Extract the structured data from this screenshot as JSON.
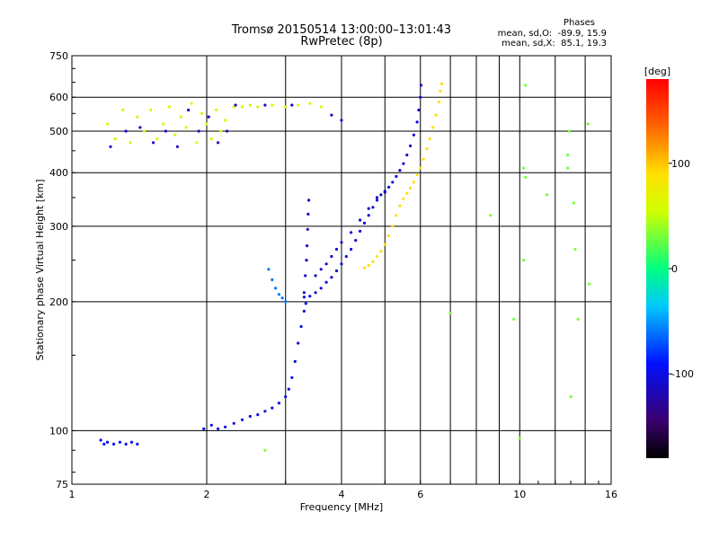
{
  "chart_data": {
    "type": "scatter",
    "title": "Tromsø 20150514 13:00:00–13:01:43",
    "subtitle": "RwPretec (8p)",
    "phase_stats": {
      "header": "Phases",
      "o_line": "mean, sd,O:  -89.9, 15.9",
      "x_line": "mean, sd,X:  85.1, 19.3"
    },
    "xlabel": "Frequency [MHz]",
    "ylabel": "Stationary phase Virtual Height [km]",
    "x_scale": "log",
    "y_scale": "log",
    "xlim": [
      1,
      16
    ],
    "ylim": [
      75,
      750
    ],
    "x_ticks": [
      1,
      2,
      4,
      6,
      10,
      16
    ],
    "x_grid": [
      2,
      3,
      4,
      5,
      6,
      7,
      8,
      9,
      10,
      12,
      14
    ],
    "y_ticks": [
      75,
      100,
      200,
      300,
      400,
      500,
      600,
      750
    ],
    "grid": true,
    "colorbar": {
      "label": "[deg]",
      "range": [
        -180,
        180
      ],
      "ticks": [
        100,
        0,
        -100
      ]
    },
    "series": [
      {
        "trace": "o-low",
        "phase": -95,
        "points": [
          [
            1.16,
            95
          ],
          [
            1.18,
            93
          ],
          [
            1.2,
            94
          ],
          [
            1.24,
            93
          ],
          [
            1.28,
            94
          ],
          [
            1.32,
            93
          ],
          [
            1.36,
            94
          ],
          [
            1.4,
            93
          ]
        ]
      },
      {
        "trace": "o-e",
        "phase": -100,
        "points": [
          [
            1.97,
            101
          ],
          [
            2.05,
            103
          ],
          [
            2.12,
            101
          ],
          [
            2.2,
            102
          ],
          [
            2.3,
            104
          ],
          [
            2.4,
            106
          ],
          [
            2.5,
            108
          ],
          [
            2.6,
            109
          ],
          [
            2.7,
            111
          ],
          [
            2.8,
            113
          ],
          [
            2.9,
            116
          ],
          [
            3.0,
            120
          ],
          [
            3.05,
            125
          ],
          [
            3.1,
            133
          ],
          [
            3.15,
            145
          ],
          [
            3.2,
            160
          ],
          [
            3.25,
            175
          ],
          [
            3.3,
            190
          ],
          [
            3.33,
            198
          ]
        ]
      },
      {
        "trace": "o-f-spike",
        "phase": -110,
        "points": [
          [
            3.3,
            210
          ],
          [
            3.32,
            230
          ],
          [
            3.34,
            250
          ],
          [
            3.35,
            270
          ],
          [
            3.36,
            295
          ],
          [
            3.37,
            320
          ],
          [
            3.38,
            345
          ]
        ]
      },
      {
        "trace": "o-f",
        "phase": -105,
        "points": [
          [
            3.3,
            205
          ],
          [
            3.4,
            206
          ],
          [
            3.5,
            210
          ],
          [
            3.6,
            215
          ],
          [
            3.7,
            222
          ],
          [
            3.8,
            228
          ],
          [
            3.9,
            236
          ],
          [
            4.0,
            245
          ],
          [
            4.1,
            255
          ],
          [
            4.2,
            265
          ],
          [
            4.3,
            278
          ],
          [
            4.4,
            292
          ],
          [
            4.5,
            305
          ],
          [
            4.6,
            318
          ],
          [
            4.7,
            332
          ],
          [
            4.8,
            345
          ],
          [
            4.9,
            355
          ],
          [
            5.0,
            362
          ],
          [
            5.1,
            370
          ],
          [
            5.2,
            380
          ],
          [
            5.3,
            392
          ],
          [
            5.4,
            405
          ],
          [
            5.5,
            420
          ],
          [
            5.6,
            440
          ],
          [
            5.7,
            462
          ],
          [
            5.8,
            490
          ],
          [
            5.9,
            525
          ],
          [
            5.95,
            560
          ],
          [
            6.0,
            600
          ],
          [
            6.02,
            640
          ]
        ]
      },
      {
        "trace": "o-f-upper",
        "phase": -110,
        "points": [
          [
            3.5,
            230
          ],
          [
            3.6,
            238
          ],
          [
            3.7,
            245
          ],
          [
            3.8,
            255
          ],
          [
            3.9,
            265
          ],
          [
            4.0,
            275
          ],
          [
            4.2,
            290
          ],
          [
            4.4,
            310
          ],
          [
            4.6,
            330
          ],
          [
            4.8,
            350
          ],
          [
            5.0,
            360
          ]
        ]
      },
      {
        "trace": "x-f",
        "phase": 90,
        "points": [
          [
            4.5,
            240
          ],
          [
            4.6,
            243
          ],
          [
            4.7,
            248
          ],
          [
            4.8,
            255
          ],
          [
            4.9,
            262
          ],
          [
            5.0,
            272
          ],
          [
            5.1,
            285
          ],
          [
            5.2,
            300
          ],
          [
            5.3,
            318
          ],
          [
            5.4,
            335
          ],
          [
            5.5,
            348
          ],
          [
            5.6,
            358
          ],
          [
            5.7,
            368
          ],
          [
            5.8,
            380
          ],
          [
            5.9,
            395
          ],
          [
            6.0,
            410
          ],
          [
            6.1,
            430
          ],
          [
            6.2,
            455
          ],
          [
            6.3,
            480
          ],
          [
            6.4,
            510
          ],
          [
            6.5,
            545
          ],
          [
            6.6,
            585
          ],
          [
            6.65,
            620
          ],
          [
            6.7,
            645
          ]
        ]
      },
      {
        "trace": "o-near-fo",
        "phase": -60,
        "points": [
          [
            2.75,
            238
          ],
          [
            2.8,
            225
          ],
          [
            2.85,
            215
          ],
          [
            2.9,
            208
          ],
          [
            2.95,
            204
          ],
          [
            3.0,
            200
          ]
        ]
      },
      {
        "trace": "sporadic-upper-band",
        "phase": 60,
        "points": [
          [
            1.2,
            520
          ],
          [
            1.25,
            480
          ],
          [
            1.3,
            560
          ],
          [
            1.35,
            470
          ],
          [
            1.4,
            540
          ],
          [
            1.45,
            500
          ],
          [
            1.5,
            560
          ],
          [
            1.55,
            480
          ],
          [
            1.6,
            520
          ],
          [
            1.65,
            570
          ],
          [
            1.7,
            490
          ],
          [
            1.75,
            540
          ],
          [
            1.8,
            510
          ],
          [
            1.85,
            580
          ],
          [
            1.9,
            470
          ],
          [
            1.95,
            550
          ],
          [
            2.0,
            520
          ],
          [
            2.05,
            480
          ],
          [
            2.1,
            560
          ],
          [
            2.15,
            500
          ],
          [
            2.2,
            530
          ],
          [
            2.3,
            570
          ],
          [
            2.4,
            570
          ],
          [
            2.5,
            575
          ],
          [
            2.6,
            570
          ],
          [
            2.8,
            575
          ],
          [
            3.0,
            570
          ],
          [
            3.2,
            575
          ],
          [
            3.4,
            580
          ],
          [
            3.6,
            570
          ]
        ]
      },
      {
        "trace": "sporadic-upper-band-blue",
        "phase": -110,
        "points": [
          [
            1.22,
            460
          ],
          [
            1.32,
            500
          ],
          [
            1.42,
            510
          ],
          [
            1.52,
            470
          ],
          [
            1.62,
            500
          ],
          [
            1.72,
            460
          ],
          [
            1.82,
            560
          ],
          [
            1.92,
            500
          ],
          [
            2.02,
            540
          ],
          [
            2.12,
            470
          ],
          [
            2.22,
            500
          ],
          [
            2.32,
            575
          ],
          [
            2.7,
            575
          ],
          [
            3.1,
            575
          ],
          [
            3.8,
            545
          ],
          [
            4.0,
            530
          ]
        ]
      },
      {
        "trace": "scattered-misc",
        "phase": 30,
        "points": [
          [
            10.3,
            640
          ],
          [
            10.2,
            410
          ],
          [
            10.3,
            390
          ],
          [
            10.2,
            250
          ],
          [
            10.0,
            96
          ],
          [
            9.7,
            182
          ],
          [
            8.6,
            318
          ],
          [
            7.0,
            188
          ],
          [
            11.5,
            355
          ],
          [
            12.8,
            440
          ],
          [
            12.8,
            410
          ],
          [
            13.0,
            120
          ],
          [
            13.2,
            340
          ],
          [
            13.3,
            265
          ],
          [
            13.5,
            182
          ],
          [
            14.2,
            520
          ],
          [
            14.3,
            220
          ],
          [
            2.7,
            90
          ],
          [
            12.9,
            500
          ]
        ]
      }
    ]
  }
}
